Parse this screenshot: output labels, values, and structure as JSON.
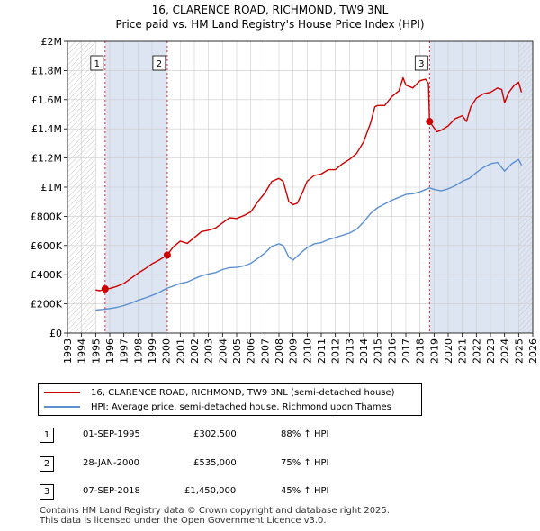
{
  "title": "16, CLARENCE ROAD, RICHMOND, TW9 3NL",
  "subtitle": "Price paid vs. HM Land Registry's House Price Index (HPI)",
  "legend": {
    "property": "16, CLARENCE ROAD, RICHMOND, TW9 3NL (semi-detached house)",
    "hpi": "HPI: Average price, semi-detached house, Richmond upon Thames"
  },
  "sales_table": [
    {
      "num": "1",
      "date": "01-SEP-1995",
      "price": "£302,500",
      "hpi": "88% ↑ HPI"
    },
    {
      "num": "2",
      "date": "28-JAN-2000",
      "price": "£535,000",
      "hpi": "75% ↑ HPI"
    },
    {
      "num": "3",
      "date": "07-SEP-2018",
      "price": "£1,450,000",
      "hpi": "45% ↑ HPI"
    }
  ],
  "footer": {
    "line1": "Contains HM Land Registry data © Crown copyright and database right 2025.",
    "line2": "This data is licensed under the Open Government Licence v3.0."
  },
  "colors": {
    "property": "#cc0000",
    "hpi": "#5b8fd0",
    "shade": "#dde5f3",
    "grid": "#cccccc"
  },
  "chart_data": {
    "type": "line",
    "xlim": [
      1993,
      2026
    ],
    "ylim": [
      0,
      2000000
    ],
    "x_ticks": [
      1993,
      1994,
      1995,
      1996,
      1997,
      1998,
      1999,
      2000,
      2001,
      2002,
      2003,
      2004,
      2005,
      2006,
      2007,
      2008,
      2009,
      2010,
      2011,
      2012,
      2013,
      2014,
      2015,
      2016,
      2017,
      2018,
      2019,
      2020,
      2021,
      2022,
      2023,
      2024,
      2025,
      2026
    ],
    "y_ticks": [
      {
        "value": 0,
        "label": "£0"
      },
      {
        "value": 200000,
        "label": "£200K"
      },
      {
        "value": 400000,
        "label": "£400K"
      },
      {
        "value": 600000,
        "label": "£600K"
      },
      {
        "value": 800000,
        "label": "£800K"
      },
      {
        "value": 1000000,
        "label": "£1M"
      },
      {
        "value": 1200000,
        "label": "£1.2M"
      },
      {
        "value": 1400000,
        "label": "£1.4M"
      },
      {
        "value": 1600000,
        "label": "£1.6M"
      },
      {
        "value": 1800000,
        "label": "£1.8M"
      },
      {
        "value": 2000000,
        "label": "£2M"
      }
    ],
    "hatched_ranges": [
      [
        1993,
        1995.0
      ],
      [
        2025.0,
        2026
      ]
    ],
    "shaded_ranges": [
      [
        1995.67,
        2000.08
      ],
      [
        2018.68,
        2026
      ]
    ],
    "sales": [
      {
        "label": "1",
        "x": 1995.67,
        "y": 302500
      },
      {
        "label": "2",
        "x": 2000.08,
        "y": 535000
      },
      {
        "label": "3",
        "x": 2018.68,
        "y": 1450000
      }
    ],
    "series": [
      {
        "name": "16, CLARENCE ROAD, RICHMOND, TW9 3NL (semi-detached house)",
        "points": [
          [
            1995.0,
            295000
          ],
          [
            1995.3,
            290000
          ],
          [
            1995.67,
            302500
          ],
          [
            1996.0,
            305000
          ],
          [
            1996.5,
            320000
          ],
          [
            1997.0,
            340000
          ],
          [
            1997.5,
            375000
          ],
          [
            1998.0,
            410000
          ],
          [
            1998.5,
            440000
          ],
          [
            1999.0,
            475000
          ],
          [
            1999.5,
            500000
          ],
          [
            2000.08,
            535000
          ],
          [
            2000.5,
            590000
          ],
          [
            2001.0,
            630000
          ],
          [
            2001.5,
            615000
          ],
          [
            2002.0,
            655000
          ],
          [
            2002.5,
            695000
          ],
          [
            2003.0,
            705000
          ],
          [
            2003.5,
            720000
          ],
          [
            2004.0,
            755000
          ],
          [
            2004.5,
            790000
          ],
          [
            2005.0,
            785000
          ],
          [
            2005.5,
            805000
          ],
          [
            2006.0,
            830000
          ],
          [
            2006.5,
            900000
          ],
          [
            2007.0,
            960000
          ],
          [
            2007.5,
            1040000
          ],
          [
            2008.0,
            1060000
          ],
          [
            2008.3,
            1040000
          ],
          [
            2008.7,
            900000
          ],
          [
            2009.0,
            880000
          ],
          [
            2009.3,
            890000
          ],
          [
            2009.7,
            970000
          ],
          [
            2010.0,
            1040000
          ],
          [
            2010.5,
            1080000
          ],
          [
            2011.0,
            1090000
          ],
          [
            2011.5,
            1120000
          ],
          [
            2012.0,
            1120000
          ],
          [
            2012.5,
            1160000
          ],
          [
            2013.0,
            1190000
          ],
          [
            2013.5,
            1230000
          ],
          [
            2014.0,
            1310000
          ],
          [
            2014.5,
            1440000
          ],
          [
            2014.8,
            1550000
          ],
          [
            2015.0,
            1560000
          ],
          [
            2015.5,
            1560000
          ],
          [
            2016.0,
            1620000
          ],
          [
            2016.5,
            1660000
          ],
          [
            2016.8,
            1750000
          ],
          [
            2017.0,
            1700000
          ],
          [
            2017.5,
            1680000
          ],
          [
            2018.0,
            1730000
          ],
          [
            2018.4,
            1740000
          ],
          [
            2018.6,
            1710000
          ],
          [
            2018.68,
            1450000
          ],
          [
            2018.9,
            1420000
          ],
          [
            2019.2,
            1380000
          ],
          [
            2019.5,
            1390000
          ],
          [
            2020.0,
            1420000
          ],
          [
            2020.5,
            1470000
          ],
          [
            2021.0,
            1490000
          ],
          [
            2021.3,
            1450000
          ],
          [
            2021.6,
            1550000
          ],
          [
            2022.0,
            1610000
          ],
          [
            2022.5,
            1640000
          ],
          [
            2023.0,
            1650000
          ],
          [
            2023.5,
            1680000
          ],
          [
            2023.8,
            1670000
          ],
          [
            2024.0,
            1580000
          ],
          [
            2024.3,
            1650000
          ],
          [
            2024.7,
            1700000
          ],
          [
            2025.0,
            1720000
          ],
          [
            2025.2,
            1650000
          ]
        ]
      },
      {
        "name": "HPI: Average price, semi-detached house, Richmond upon Thames",
        "points": [
          [
            1995.0,
            158000
          ],
          [
            1995.5,
            162000
          ],
          [
            1996.0,
            168000
          ],
          [
            1996.5,
            176000
          ],
          [
            1997.0,
            188000
          ],
          [
            1997.5,
            205000
          ],
          [
            1998.0,
            225000
          ],
          [
            1998.5,
            240000
          ],
          [
            1999.0,
            258000
          ],
          [
            1999.5,
            278000
          ],
          [
            2000.0,
            305000
          ],
          [
            2000.5,
            322000
          ],
          [
            2001.0,
            340000
          ],
          [
            2001.5,
            350000
          ],
          [
            2002.0,
            372000
          ],
          [
            2002.5,
            392000
          ],
          [
            2003.0,
            405000
          ],
          [
            2003.5,
            415000
          ],
          [
            2004.0,
            435000
          ],
          [
            2004.5,
            448000
          ],
          [
            2005.0,
            450000
          ],
          [
            2005.5,
            460000
          ],
          [
            2006.0,
            478000
          ],
          [
            2006.5,
            512000
          ],
          [
            2007.0,
            548000
          ],
          [
            2007.5,
            595000
          ],
          [
            2008.0,
            612000
          ],
          [
            2008.3,
            600000
          ],
          [
            2008.7,
            520000
          ],
          [
            2009.0,
            500000
          ],
          [
            2009.5,
            545000
          ],
          [
            2010.0,
            585000
          ],
          [
            2010.5,
            612000
          ],
          [
            2011.0,
            620000
          ],
          [
            2011.5,
            640000
          ],
          [
            2012.0,
            655000
          ],
          [
            2012.5,
            670000
          ],
          [
            2013.0,
            685000
          ],
          [
            2013.5,
            712000
          ],
          [
            2014.0,
            760000
          ],
          [
            2014.5,
            820000
          ],
          [
            2015.0,
            860000
          ],
          [
            2015.5,
            885000
          ],
          [
            2016.0,
            910000
          ],
          [
            2016.5,
            930000
          ],
          [
            2017.0,
            950000
          ],
          [
            2017.5,
            955000
          ],
          [
            2018.0,
            968000
          ],
          [
            2018.68,
            995000
          ],
          [
            2019.0,
            985000
          ],
          [
            2019.5,
            975000
          ],
          [
            2020.0,
            988000
          ],
          [
            2020.5,
            1010000
          ],
          [
            2021.0,
            1040000
          ],
          [
            2021.5,
            1060000
          ],
          [
            2022.0,
            1100000
          ],
          [
            2022.5,
            1135000
          ],
          [
            2023.0,
            1160000
          ],
          [
            2023.5,
            1170000
          ],
          [
            2024.0,
            1110000
          ],
          [
            2024.5,
            1160000
          ],
          [
            2025.0,
            1190000
          ],
          [
            2025.2,
            1150000
          ]
        ]
      }
    ]
  }
}
